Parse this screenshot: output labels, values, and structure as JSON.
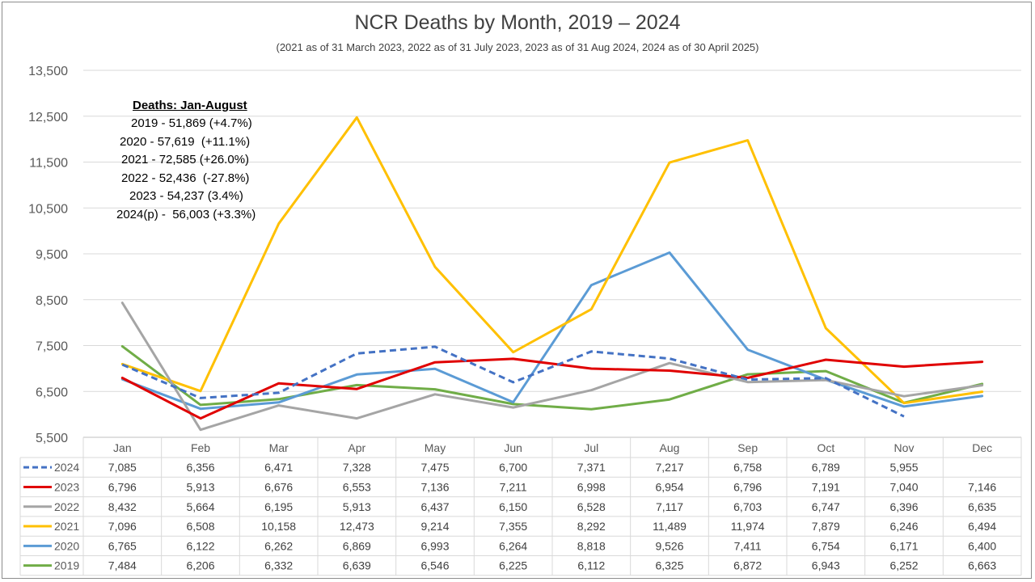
{
  "chart_data": {
    "type": "line",
    "title": "NCR Deaths by Month, 2019 – 2024",
    "subtitle": "(2021 as of 31 March 2023, 2022 as of 31 July 2023, 2023 as of 31 Aug 2024, 2024 as of 30 April 2025)",
    "categories": [
      "Jan",
      "Feb",
      "Mar",
      "Apr",
      "May",
      "Jun",
      "Jul",
      "Aug",
      "Sep",
      "Oct",
      "Nov",
      "Dec"
    ],
    "ylim": [
      5500,
      13500
    ],
    "yticks": [
      "5,500",
      "6,500",
      "7,500",
      "8,500",
      "9,500",
      "10,500",
      "11,500",
      "12,500",
      "13,500"
    ],
    "grid": true,
    "legend": "data-table",
    "series": [
      {
        "name": "2024",
        "color": "#4472c4",
        "dashed": true,
        "values": [
          7085,
          6356,
          6471,
          7328,
          7475,
          6700,
          7371,
          7217,
          6758,
          6789,
          5955,
          null
        ],
        "labels": [
          "7,085",
          "6,356",
          "6,471",
          "7,328",
          "7,475",
          "6,700",
          "7,371",
          "7,217",
          "6,758",
          "6,789",
          "5,955",
          ""
        ]
      },
      {
        "name": "2023",
        "color": "#e00000",
        "dashed": false,
        "values": [
          6796,
          5913,
          6676,
          6553,
          7136,
          7211,
          6998,
          6954,
          6796,
          7191,
          7040,
          7146
        ],
        "labels": [
          "6,796",
          "5,913",
          "6,676",
          "6,553",
          "7,136",
          "7,211",
          "6,998",
          "6,954",
          "6,796",
          "7,191",
          "7,040",
          "7,146"
        ]
      },
      {
        "name": "2022",
        "color": "#a5a5a5",
        "dashed": false,
        "values": [
          8432,
          5664,
          6195,
          5913,
          6437,
          6150,
          6528,
          7117,
          6703,
          6747,
          6396,
          6635
        ],
        "labels": [
          "8,432",
          "5,664",
          "6,195",
          "5,913",
          "6,437",
          "6,150",
          "6,528",
          "7,117",
          "6,703",
          "6,747",
          "6,396",
          "6,635"
        ]
      },
      {
        "name": "2021",
        "color": "#ffc000",
        "dashed": false,
        "values": [
          7096,
          6508,
          10158,
          12473,
          9214,
          7355,
          8292,
          11489,
          11974,
          7879,
          6246,
          6494
        ],
        "labels": [
          "7,096",
          "6,508",
          "10,158",
          "12,473",
          "9,214",
          "7,355",
          "8,292",
          "11,489",
          "11,974",
          "7,879",
          "6,246",
          "6,494"
        ]
      },
      {
        "name": "2020",
        "color": "#5b9bd5",
        "dashed": false,
        "values": [
          6765,
          6122,
          6262,
          6869,
          6993,
          6264,
          8818,
          9526,
          7411,
          6754,
          6171,
          6400
        ],
        "labels": [
          "6,765",
          "6,122",
          "6,262",
          "6,869",
          "6,993",
          "6,264",
          "8,818",
          "9,526",
          "7,411",
          "6,754",
          "6,171",
          "6,400"
        ]
      },
      {
        "name": "2019",
        "color": "#70ad47",
        "dashed": false,
        "values": [
          7484,
          6206,
          6332,
          6639,
          6546,
          6225,
          6112,
          6325,
          6872,
          6943,
          6252,
          6663
        ],
        "labels": [
          "7,484",
          "6,206",
          "6,332",
          "6,639",
          "6,546",
          "6,225",
          "6,112",
          "6,325",
          "6,872",
          "6,943",
          "6,252",
          "6,663"
        ]
      }
    ],
    "annotation": {
      "heading": "Deaths: Jan-August",
      "lines": [
        "2019 - 51,869 (+4.7%)",
        "2020 - 57,619  (+11.1%)",
        "2021 - 72,585 (+26.0%)",
        "2022 - 52,436  (-27.8%)",
        "2023 - 54,237 (3.4%)",
        "2024(p) -  56,003 (+3.3%)"
      ]
    }
  }
}
